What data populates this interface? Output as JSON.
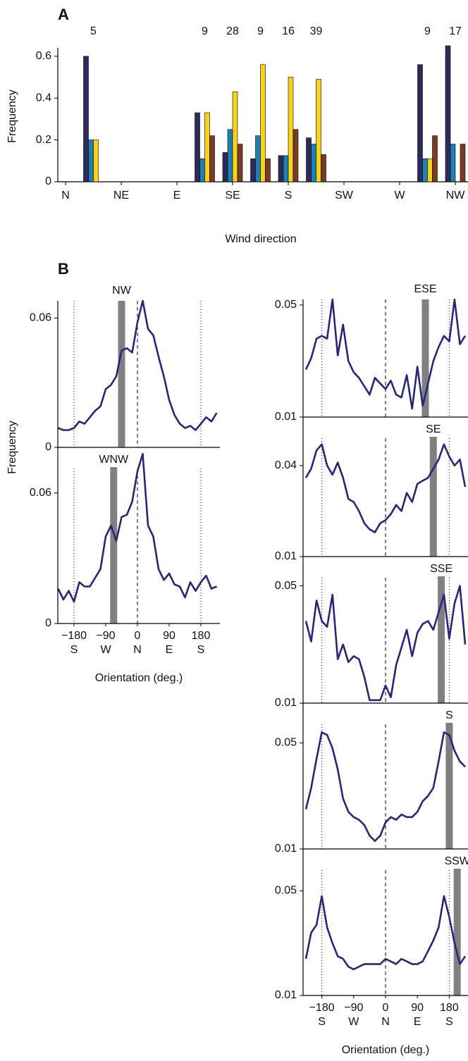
{
  "chart_data": [
    {
      "type": "bar",
      "panel": "A",
      "xlabel": "Wind direction",
      "ylabel": "Frequency",
      "categories": [
        "N",
        null,
        "NE",
        null,
        "E",
        null,
        "SE",
        null,
        "S",
        null,
        "SW",
        null,
        "W",
        null,
        "NW"
      ],
      "counts": [
        null,
        5,
        null,
        null,
        null,
        9,
        28,
        9,
        16,
        39,
        null,
        null,
        null,
        9,
        17
      ],
      "series": [
        {
          "color": "#2e2a5c",
          "values": [
            null,
            0.6,
            null,
            null,
            null,
            0.33,
            0.14,
            0.11,
            0.125,
            0.21,
            null,
            null,
            null,
            0.56,
            0.65
          ]
        },
        {
          "color": "#1f80b4",
          "values": [
            null,
            0.2,
            null,
            null,
            null,
            0.11,
            0.25,
            0.22,
            0.125,
            0.18,
            null,
            null,
            null,
            0.11,
            0.18
          ]
        },
        {
          "color": "#f6d21d",
          "values": [
            null,
            0.2,
            null,
            null,
            null,
            0.33,
            0.43,
            0.56,
            0.5,
            0.49,
            null,
            null,
            null,
            0.11,
            null
          ]
        },
        {
          "color": "#7b3a22",
          "values": [
            null,
            null,
            null,
            null,
            null,
            0.22,
            0.18,
            0.11,
            0.25,
            0.13,
            null,
            null,
            null,
            0.22,
            0.18
          ]
        }
      ],
      "ylim": [
        0,
        0.65
      ],
      "yticks": [
        0,
        0.2,
        0.4,
        0.6
      ]
    },
    {
      "type": "line",
      "panel": "B",
      "title": "NW",
      "wind_direction": -45,
      "ylabel": "Frequency",
      "color": "#28267a",
      "x": [
        -225,
        -210,
        -195,
        -180,
        -165,
        -150,
        -135,
        -120,
        -105,
        -90,
        -75,
        -60,
        -45,
        -30,
        -15,
        0,
        15,
        30,
        45,
        60,
        75,
        90,
        105,
        120,
        135,
        150,
        165,
        180,
        195,
        210,
        225
      ],
      "values": [
        0.009,
        0.008,
        0.008,
        0.009,
        0.012,
        0.011,
        0.014,
        0.017,
        0.019,
        0.027,
        0.029,
        0.033,
        0.045,
        0.046,
        0.044,
        0.058,
        0.068,
        0.055,
        0.052,
        0.042,
        0.033,
        0.022,
        0.015,
        0.011,
        0.009,
        0.01,
        0.008,
        0.011,
        0.014,
        0.012,
        0.016
      ],
      "xlim": [
        -226,
        234
      ],
      "ylim": [
        0,
        0.068
      ],
      "yticks": [
        0,
        0.06
      ],
      "vlines": [
        {
          "value": -180,
          "style": "dotted"
        },
        {
          "value": 0,
          "style": "dashed"
        },
        {
          "value": 180,
          "style": "dotted"
        }
      ]
    },
    {
      "type": "line",
      "title": "WNW",
      "wind_direction": -67.5,
      "xlabel": "Orientation (deg.)",
      "color": "#28267a",
      "x": [
        -225,
        -210,
        -195,
        -180,
        -165,
        -150,
        -135,
        -120,
        -105,
        -90,
        -75,
        -60,
        -45,
        -30,
        -15,
        0,
        15,
        30,
        45,
        60,
        75,
        90,
        105,
        120,
        135,
        150,
        165,
        180,
        195,
        210,
        225
      ],
      "values": [
        0.016,
        0.011,
        0.015,
        0.01,
        0.019,
        0.017,
        0.017,
        0.021,
        0.025,
        0.04,
        0.045,
        0.038,
        0.049,
        0.05,
        0.056,
        0.07,
        0.078,
        0.045,
        0.04,
        0.025,
        0.02,
        0.023,
        0.018,
        0.017,
        0.012,
        0.019,
        0.015,
        0.019,
        0.022,
        0.016,
        0.017
      ],
      "xlim": [
        -226,
        234
      ],
      "ylim": [
        0,
        0.081
      ],
      "yticks": [
        0,
        0.06
      ],
      "xticks": [
        {
          "value": -180,
          "label": "−180"
        },
        {
          "value": -90,
          "label": "−90"
        },
        0,
        90,
        180
      ],
      "xtick_sublabels": [
        "S",
        "W",
        "N",
        "E",
        "S"
      ],
      "vlines": [
        {
          "value": -180,
          "style": "dotted"
        },
        {
          "value": 0,
          "style": "dashed"
        },
        {
          "value": 180,
          "style": "dotted"
        }
      ]
    },
    {
      "type": "line",
      "title": "ESE",
      "wind_direction": 112.5,
      "color": "#28267a",
      "x": [
        -225,
        -210,
        -195,
        -180,
        -165,
        -150,
        -135,
        -120,
        -105,
        -90,
        -75,
        -60,
        -45,
        -30,
        -15,
        0,
        15,
        30,
        45,
        60,
        75,
        90,
        105,
        120,
        135,
        150,
        165,
        180,
        195,
        210,
        225
      ],
      "values": [
        0.027,
        0.031,
        0.038,
        0.039,
        0.038,
        0.052,
        0.032,
        0.043,
        0.03,
        0.026,
        0.024,
        0.021,
        0.018,
        0.024,
        0.022,
        0.02,
        0.023,
        0.018,
        0.017,
        0.025,
        0.013,
        0.028,
        0.014,
        0.022,
        0.03,
        0.035,
        0.039,
        0.037,
        0.052,
        0.036,
        0.039
      ],
      "xlim": [
        -233,
        233
      ],
      "ylim": [
        0.01,
        0.052
      ],
      "yticks": [
        0.01,
        0.05
      ],
      "vlines": [
        {
          "value": -180,
          "style": "dotted"
        },
        {
          "value": 0,
          "style": "dashed"
        },
        {
          "value": 180,
          "style": "dotted"
        }
      ]
    },
    {
      "type": "line",
      "title": "SE",
      "wind_direction": 135,
      "color": "#28267a",
      "x": [
        -225,
        -210,
        -195,
        -180,
        -165,
        -150,
        -135,
        -120,
        -105,
        -90,
        -75,
        -60,
        -45,
        -30,
        -15,
        0,
        15,
        30,
        45,
        60,
        75,
        90,
        105,
        120,
        135,
        150,
        165,
        180,
        195,
        210,
        225
      ],
      "values": [
        0.036,
        0.039,
        0.045,
        0.047,
        0.04,
        0.037,
        0.041,
        0.036,
        0.029,
        0.028,
        0.025,
        0.021,
        0.019,
        0.018,
        0.021,
        0.022,
        0.024,
        0.027,
        0.025,
        0.031,
        0.028,
        0.034,
        0.035,
        0.036,
        0.039,
        0.042,
        0.047,
        0.043,
        0.04,
        0.042,
        0.033
      ],
      "xlim": [
        -233,
        233
      ],
      "ylim": [
        0.01,
        0.056
      ],
      "yticks": [
        0.01,
        0.04
      ],
      "vlines": [
        {
          "value": -180,
          "style": "dotted"
        },
        {
          "value": 0,
          "style": "dashed"
        },
        {
          "value": 180,
          "style": "dotted"
        }
      ]
    },
    {
      "type": "line",
      "title": "SSE",
      "wind_direction": 157.5,
      "color": "#28267a",
      "x": [
        -225,
        -210,
        -195,
        -180,
        -165,
        -150,
        -135,
        -120,
        -105,
        -90,
        -75,
        -60,
        -45,
        -30,
        -15,
        0,
        15,
        30,
        45,
        60,
        75,
        90,
        105,
        120,
        135,
        150,
        165,
        180,
        195,
        210,
        225
      ],
      "values": [
        0.038,
        0.031,
        0.045,
        0.038,
        0.036,
        0.047,
        0.025,
        0.03,
        0.024,
        0.026,
        0.025,
        0.019,
        0.011,
        0.011,
        0.011,
        0.016,
        0.012,
        0.023,
        0.029,
        0.035,
        0.026,
        0.034,
        0.037,
        0.038,
        0.035,
        0.041,
        0.047,
        0.032,
        0.044,
        0.05,
        0.03
      ],
      "xlim": [
        -233,
        233
      ],
      "ylim": [
        0.01,
        0.06
      ],
      "yticks": [
        0.01,
        0.05
      ],
      "vlines": [
        {
          "value": -180,
          "style": "dotted"
        },
        {
          "value": 0,
          "style": "dashed"
        },
        {
          "value": 180,
          "style": "dotted"
        }
      ]
    },
    {
      "type": "line",
      "title": "S",
      "wind_direction": 180,
      "color": "#28267a",
      "x": [
        -225,
        -210,
        -195,
        -180,
        -165,
        -150,
        -135,
        -120,
        -105,
        -90,
        -75,
        -60,
        -45,
        -30,
        -15,
        0,
        15,
        30,
        45,
        60,
        75,
        90,
        105,
        120,
        135,
        150,
        165,
        180,
        195,
        210,
        225
      ],
      "values": [
        0.025,
        0.033,
        0.044,
        0.054,
        0.053,
        0.048,
        0.04,
        0.029,
        0.024,
        0.022,
        0.021,
        0.019,
        0.015,
        0.013,
        0.015,
        0.02,
        0.022,
        0.021,
        0.023,
        0.022,
        0.022,
        0.024,
        0.028,
        0.03,
        0.033,
        0.043,
        0.054,
        0.053,
        0.047,
        0.043,
        0.041
      ],
      "xlim": [
        -233,
        233
      ],
      "ylim": [
        0.01,
        0.065
      ],
      "yticks": [
        0.01,
        0.05
      ],
      "vlines": [
        {
          "value": -180,
          "style": "dotted"
        },
        {
          "value": 0,
          "style": "dashed"
        },
        {
          "value": 180,
          "style": "dotted"
        }
      ]
    },
    {
      "type": "line",
      "title": "SSW",
      "wind_direction": 202.5,
      "xlabel": "Orientation (deg.)",
      "color": "#28267a",
      "x": [
        -225,
        -210,
        -195,
        -180,
        -165,
        -150,
        -135,
        -120,
        -105,
        -90,
        -75,
        -60,
        -45,
        -30,
        -15,
        0,
        15,
        30,
        45,
        60,
        75,
        90,
        105,
        120,
        135,
        150,
        165,
        180,
        195,
        210,
        225
      ],
      "values": [
        0.024,
        0.034,
        0.037,
        0.048,
        0.036,
        0.03,
        0.025,
        0.024,
        0.021,
        0.02,
        0.021,
        0.022,
        0.022,
        0.022,
        0.022,
        0.024,
        0.023,
        0.022,
        0.024,
        0.023,
        0.022,
        0.022,
        0.023,
        0.027,
        0.031,
        0.036,
        0.048,
        0.04,
        0.03,
        0.022,
        0.025
      ],
      "xlim": [
        -233,
        233
      ],
      "ylim": [
        0.01,
        0.066
      ],
      "yticks": [
        0.01,
        0.05
      ],
      "xticks": [
        {
          "value": -180,
          "label": "−180"
        },
        {
          "value": -90,
          "label": "−90"
        },
        0,
        90,
        180
      ],
      "xtick_sublabels": [
        "S",
        "W",
        "N",
        "E",
        "S"
      ],
      "vlines": [
        {
          "value": -180,
          "style": "dotted"
        },
        {
          "value": 0,
          "style": "dashed"
        },
        {
          "value": 180,
          "style": "dotted"
        }
      ]
    }
  ]
}
